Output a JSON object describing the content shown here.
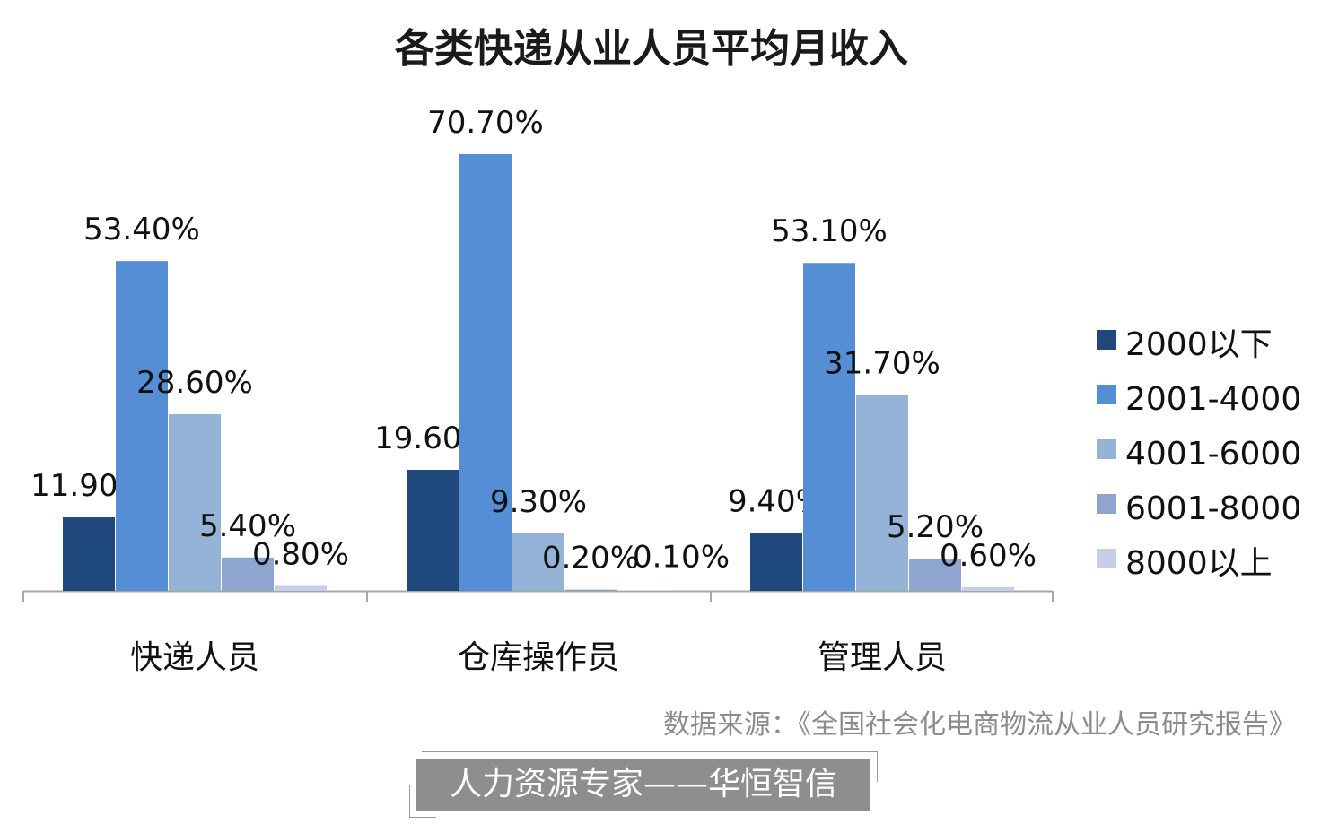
{
  "title": "各类快递从业人员平均月收入",
  "source_note": "数据来源：《全国社会化电商物流从业人员研究报告》",
  "brand_label": "人力资源专家——华恒智信",
  "colors": {
    "series": [
      "#1f487c",
      "#558ed5",
      "#95b3d7",
      "#8ea5cf",
      "#c5cfe8"
    ],
    "axis": "#a6a6a6"
  },
  "chart_data": {
    "type": "bar",
    "title": "各类快递从业人员平均月收入",
    "categories": [
      "快递人员",
      "仓库操作员",
      "管理人员"
    ],
    "series": [
      {
        "name": "2000以下",
        "values": [
          11.9,
          19.6,
          9.4
        ],
        "labels": [
          "11.90%",
          "19.60%",
          "9.40%"
        ]
      },
      {
        "name": "2001-4000",
        "values": [
          53.4,
          70.7,
          53.1
        ],
        "labels": [
          "53.40%",
          "70.70%",
          "53.10%"
        ]
      },
      {
        "name": "4001-6000",
        "values": [
          28.6,
          9.3,
          31.7
        ],
        "labels": [
          "28.60%",
          "9.30%",
          "31.70%"
        ]
      },
      {
        "name": "6001-8000",
        "values": [
          5.4,
          0.2,
          5.2
        ],
        "labels": [
          "5.40%",
          "0.20%",
          "5.20%"
        ]
      },
      {
        "name": "8000以上",
        "values": [
          0.8,
          0.1,
          0.6
        ],
        "labels": [
          "0.80%",
          "0.10%",
          "0.60%"
        ]
      }
    ],
    "ylim": [
      0,
      70.7
    ],
    "grid": false,
    "legend": "right",
    "xlabel": "",
    "ylabel": ""
  }
}
